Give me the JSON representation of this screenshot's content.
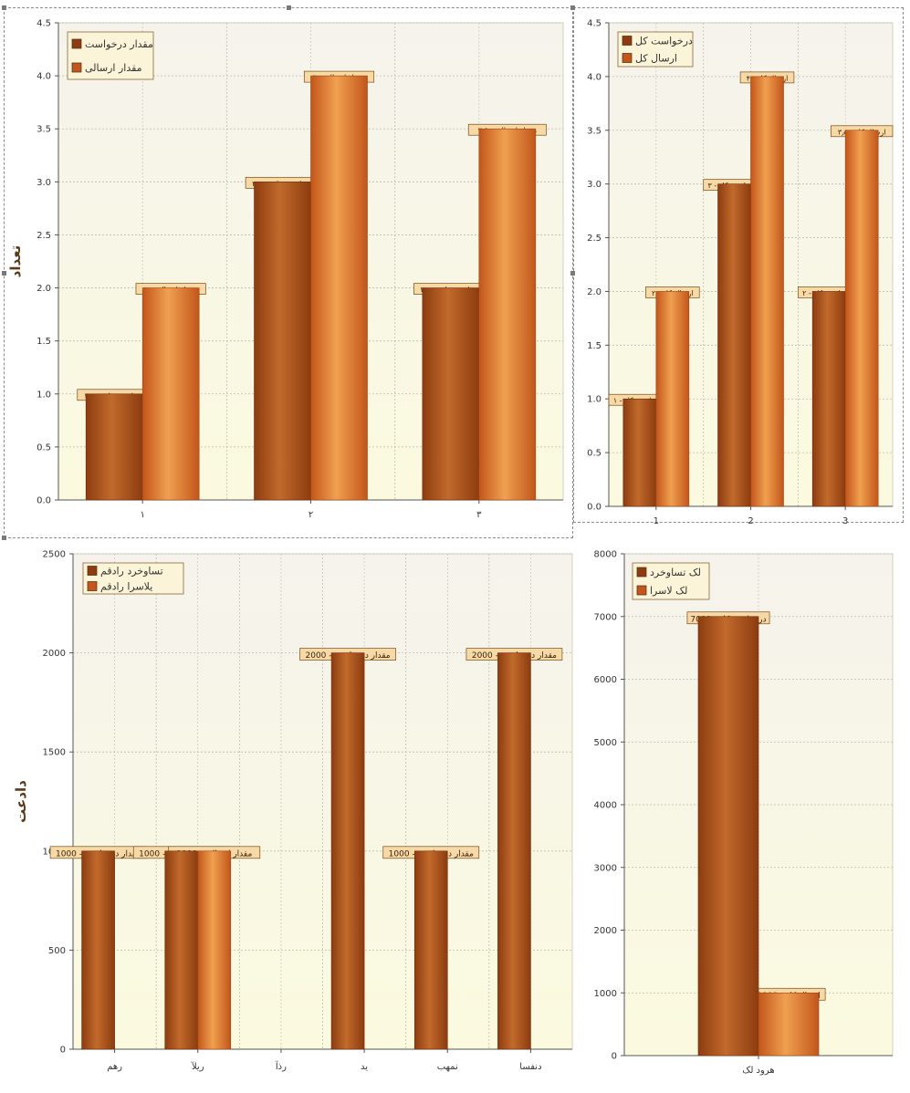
{
  "colors": {
    "series1_dark": "#8c3c10",
    "series1_light": "#c26a2c",
    "series2_dark": "#c2561b",
    "series2_light": "#f0a050",
    "plot_bg_top": "#f5f3ec",
    "plot_bg_bottom": "#fbfadf",
    "axis": "#555555",
    "grid": "#bdbdb0",
    "label_bg": "#f7d9a6",
    "label_border": "#7a4a1a",
    "legend_bg": "#fbf4d8"
  },
  "chart_data": [
    {
      "id": "c1",
      "type": "bar",
      "ylabel": "تعداد",
      "ylim": [
        0,
        4.5
      ],
      "yticks": [
        "0.0",
        "0.5",
        "1.0",
        "1.5",
        "2.0",
        "2.5",
        "3.0",
        "3.5",
        "4.0",
        "4.5"
      ],
      "categories": [
        "۱",
        "۲",
        "۳"
      ],
      "grid": true,
      "legend": "top-left",
      "series": [
        {
          "name": "مقدار درخواست",
          "values": [
            1,
            3,
            2
          ],
          "labels": [
            "مقدار درخواست - ۱",
            "مقدار درخواست - ۳",
            "مقدار درخواست - ۲"
          ]
        },
        {
          "name": "مقدار ارسالی",
          "values": [
            2,
            4,
            3.5
          ],
          "labels": [
            "مقدار ارسالی - ۲",
            "مقدار ارسالی - ۴",
            "مقدار ارسالی - ۳٫۵"
          ]
        }
      ]
    },
    {
      "id": "c2",
      "type": "bar",
      "ylabel": "",
      "ylim": [
        0,
        4.5
      ],
      "yticks": [
        "0.0",
        "0.5",
        "1.0",
        "1.5",
        "2.0",
        "2.5",
        "3.0",
        "3.5",
        "4.0",
        "4.5"
      ],
      "categories": [
        "1",
        "2",
        "3"
      ],
      "grid": true,
      "legend": "top-left",
      "series": [
        {
          "name": "درخواست کل",
          "values": [
            1,
            3,
            2
          ],
          "labels": [
            "درخواست کل - ۱",
            "درخواست کل - ۳",
            "درخواست کل - ۲"
          ]
        },
        {
          "name": "ارسال کل",
          "values": [
            2,
            4,
            3.5
          ],
          "labels": [
            "ارسال کل - ۲",
            "ارسال کل - ۴",
            "ارسال کل - ۳٫۵"
          ]
        }
      ]
    },
    {
      "id": "c3",
      "type": "bar",
      "ylabel": "دادعت",
      "ylim": [
        0,
        2500
      ],
      "yticks": [
        "0",
        "500",
        "1000",
        "1500",
        "2000",
        "2500"
      ],
      "categories": [
        "رهم",
        "ریلآ",
        "رذآ",
        "ید",
        "نمهب",
        "دنفسا"
      ],
      "grid": true,
      "legend": "top-left",
      "series": [
        {
          "name": "تساوخرد رادقم",
          "values": [
            1000,
            1000,
            null,
            2000,
            1000,
            2000
          ],
          "labels": [
            "مقدار درخواست - 1000",
            "مقدار درخواست - 1000",
            "",
            "مقدار درخواست - 2000",
            "مقدار درخواست - 1000",
            "مقدار درخواست - 2000"
          ]
        },
        {
          "name": "یلاسرا رادقم",
          "values": [
            null,
            1000,
            null,
            null,
            null,
            null
          ],
          "labels": [
            "",
            "مقدار ارسالی - 1000",
            "",
            "",
            "",
            ""
          ]
        }
      ]
    },
    {
      "id": "c4",
      "type": "bar",
      "ylabel": "",
      "ylim": [
        0,
        8000
      ],
      "yticks": [
        "0",
        "1000",
        "2000",
        "3000",
        "4000",
        "5000",
        "6000",
        "7000",
        "8000"
      ],
      "categories": [
        "هرود لک"
      ],
      "grid": true,
      "legend": "top-left",
      "series": [
        {
          "name": "لک تساوخرد",
          "values": [
            7000
          ],
          "labels": [
            "درخواست کل - 7000"
          ]
        },
        {
          "name": "لک لاسرا",
          "values": [
            1000
          ],
          "labels": [
            "ارسال کل - 1000"
          ]
        }
      ]
    }
  ]
}
